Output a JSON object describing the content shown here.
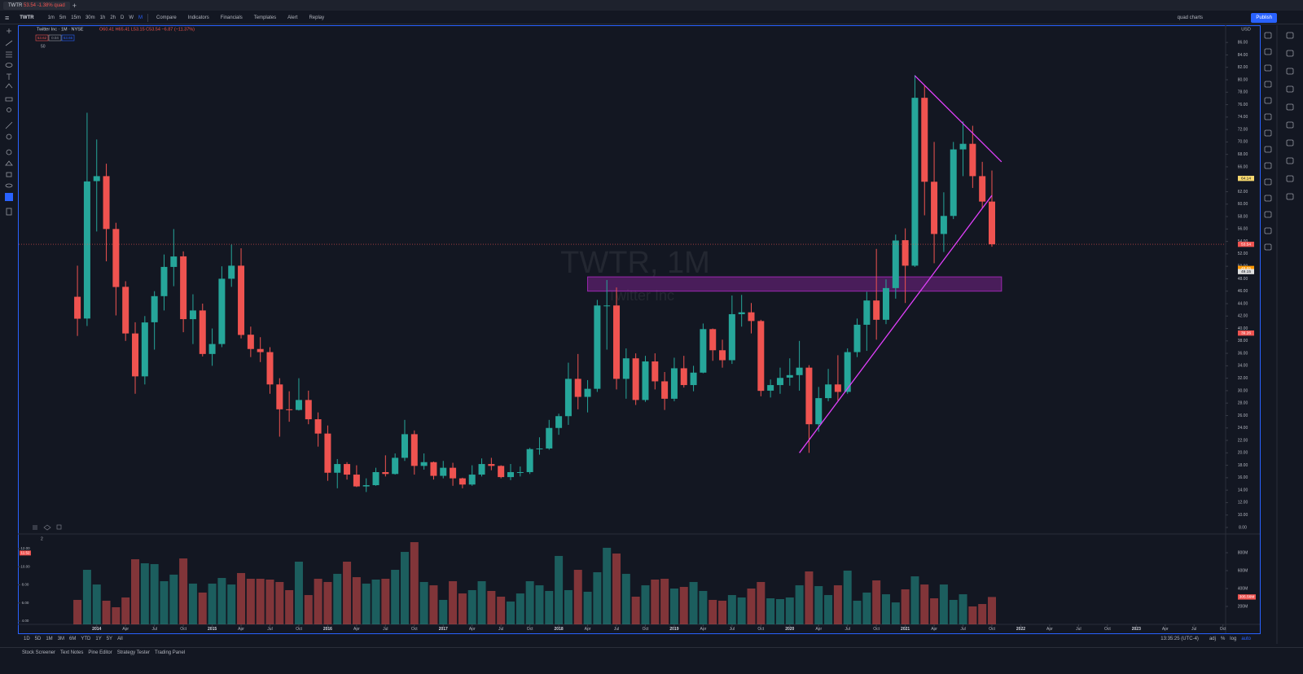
{
  "tab": {
    "symbol": "TWTR",
    "price": "53.54",
    "change": "-1.38% quad"
  },
  "toolbar": {
    "symbol": "TWTR",
    "intervals": [
      "1m",
      "5m",
      "15m",
      "30m",
      "1h",
      "2h",
      "D",
      "W",
      "M"
    ],
    "buttons": [
      "Compare",
      "Indicators",
      "Financials",
      "Templates",
      "Alert",
      "Replay"
    ],
    "layout": "quad charts",
    "publish": "Publish"
  },
  "chart_data": {
    "type": "candlestick",
    "legend_title": "Twitter Inc · 1M · NYSE",
    "legend_ohlc": "O60.41 H65.41 L53.15 C53.54 −6.87 (−11.37%)",
    "quote_boxes": [
      "53.62",
      "0.04",
      "53.66"
    ],
    "indicator_label": "50",
    "currency": "USD",
    "watermark_symbol": "TWTR, 1M",
    "watermark_name": "Twitter Inc",
    "x": [
      "2013-11",
      "2013-12",
      "2014-01",
      "2014-02",
      "2014-03",
      "2014-04",
      "2014-05",
      "2014-06",
      "2014-07",
      "2014-08",
      "2014-09",
      "2014-10",
      "2014-11",
      "2014-12",
      "2015-01",
      "2015-02",
      "2015-03",
      "2015-04",
      "2015-05",
      "2015-06",
      "2015-07",
      "2015-08",
      "2015-09",
      "2015-10",
      "2015-11",
      "2015-12",
      "2016-01",
      "2016-02",
      "2016-03",
      "2016-04",
      "2016-05",
      "2016-06",
      "2016-07",
      "2016-08",
      "2016-09",
      "2016-10",
      "2016-11",
      "2016-12",
      "2017-01",
      "2017-02",
      "2017-03",
      "2017-04",
      "2017-05",
      "2017-06",
      "2017-07",
      "2017-08",
      "2017-09",
      "2017-10",
      "2017-11",
      "2017-12",
      "2018-01",
      "2018-02",
      "2018-03",
      "2018-04",
      "2018-05",
      "2018-06",
      "2018-07",
      "2018-08",
      "2018-09",
      "2018-10",
      "2018-11",
      "2018-12",
      "2019-01",
      "2019-02",
      "2019-03",
      "2019-04",
      "2019-05",
      "2019-06",
      "2019-07",
      "2019-08",
      "2019-09",
      "2019-10",
      "2019-11",
      "2019-12",
      "2020-01",
      "2020-02",
      "2020-03",
      "2020-04",
      "2020-05",
      "2020-06",
      "2020-07",
      "2020-08",
      "2020-09",
      "2020-10",
      "2020-11",
      "2020-12",
      "2021-01",
      "2021-02",
      "2021-03",
      "2021-04",
      "2021-05",
      "2021-06",
      "2021-07",
      "2021-08",
      "2021-09",
      "2021-10"
    ],
    "open": [
      45.1,
      41.6,
      63.7,
      64.5,
      56.0,
      46.7,
      39.2,
      32.3,
      41.0,
      45.2,
      49.9,
      51.6,
      41.5,
      42.9,
      35.9,
      37.5,
      48.0,
      50.1,
      39.0,
      36.7,
      36.2,
      31.0,
      27.0,
      26.9,
      28.5,
      25.4,
      23.1,
      16.8,
      18.2,
      16.5,
      14.6,
      14.8,
      16.9,
      16.6,
      19.2,
      23.0,
      17.9,
      18.5,
      16.3,
      17.6,
      15.9,
      14.9,
      16.5,
      18.2,
      17.9,
      16.1,
      16.9,
      16.9,
      20.6,
      20.7,
      24.0,
      25.9,
      31.9,
      29.0,
      30.3,
      43.7,
      43.7,
      31.9,
      35.2,
      28.5,
      34.7,
      31.5,
      28.7,
      33.6,
      30.9,
      32.9,
      39.9,
      36.5,
      34.9,
      42.3,
      42.6,
      41.2,
      30.0,
      30.9,
      32.1,
      32.5,
      33.7,
      24.6,
      28.8,
      31.0,
      29.8,
      36.2,
      40.6,
      44.5,
      41.4,
      46.5,
      54.2,
      50.1,
      77.1,
      63.6,
      55.2,
      58.1,
      68.8,
      69.7,
      64.5,
      60.41
    ],
    "high": [
      50.1,
      74.7,
      70.4,
      66.5,
      57.0,
      47.6,
      41.0,
      42.0,
      46.0,
      51.9,
      55.99,
      52.4,
      45.5,
      44.0,
      40.0,
      50.0,
      53.5,
      52.9,
      40.3,
      38.6,
      37.0,
      32.0,
      29.9,
      32.0,
      30.0,
      26.5,
      24.4,
      19.0,
      18.5,
      18.0,
      15.9,
      17.6,
      19.6,
      19.9,
      25.3,
      23.6,
      19.9,
      18.6,
      18.7,
      18.4,
      16.0,
      18.0,
      19.1,
      19.2,
      18.0,
      18.2,
      17.8,
      20.8,
      22.5,
      25.3,
      26.3,
      34.5,
      35.9,
      31.7,
      44.6,
      47.8,
      46.6,
      36.8,
      36.0,
      35.6,
      36.0,
      33.0,
      35.3,
      35.6,
      34.0,
      40.8,
      40.0,
      38.2,
      45.3,
      45.4,
      44.1,
      41.4,
      31.8,
      33.7,
      35.2,
      38.0,
      34.1,
      30.6,
      33.5,
      35.7,
      36.8,
      41.6,
      45.9,
      52.8,
      47.9,
      55.1,
      56.1,
      80.75,
      79.0,
      70.0,
      61.9,
      70.0,
      73.3,
      72.6,
      66.8,
      65.41
    ],
    "low": [
      38.8,
      40.4,
      55.6,
      50.8,
      42.1,
      38.0,
      29.5,
      31.0,
      36.6,
      42.9,
      46.8,
      39.4,
      37.5,
      35.5,
      34.0,
      37.0,
      46.7,
      38.4,
      35.4,
      34.6,
      29.5,
      22.6,
      25.0,
      26.8,
      24.6,
      21.0,
      15.5,
      14.3,
      15.7,
      14.5,
      13.7,
      14.7,
      16.2,
      16.5,
      18.7,
      16.5,
      17.3,
      15.7,
      15.9,
      14.7,
      14.3,
      14.7,
      16.2,
      17.2,
      15.9,
      15.6,
      16.2,
      16.6,
      19.7,
      20.5,
      22.9,
      24.5,
      27.0,
      26.5,
      29.8,
      36.6,
      30.2,
      28.7,
      27.7,
      28.2,
      30.2,
      26.9,
      28.3,
      30.5,
      29.9,
      32.8,
      34.8,
      33.7,
      34.3,
      40.3,
      39.2,
      29.1,
      28.9,
      29.5,
      30.8,
      30.0,
      20.0,
      23.4,
      28.3,
      28.4,
      29.5,
      35.4,
      36.4,
      38.2,
      40.7,
      44.8,
      44.1,
      49.9,
      58.2,
      50.5,
      52.3,
      57.6,
      64.5,
      62.6,
      59.4,
      53.15
    ],
    "close": [
      41.57,
      63.65,
      64.5,
      56.0,
      46.67,
      39.2,
      32.3,
      40.97,
      45.2,
      49.9,
      51.58,
      41.5,
      42.9,
      35.9,
      37.5,
      48.0,
      50.1,
      38.96,
      36.7,
      36.2,
      31.0,
      27.0,
      26.9,
      28.5,
      25.4,
      23.1,
      16.8,
      18.2,
      16.5,
      14.6,
      14.8,
      16.9,
      16.6,
      19.2,
      23.0,
      17.9,
      18.5,
      16.3,
      17.6,
      15.9,
      14.9,
      16.5,
      18.2,
      17.9,
      16.1,
      16.9,
      16.9,
      20.6,
      20.7,
      24.0,
      25.9,
      31.9,
      29.0,
      30.3,
      43.7,
      43.7,
      31.9,
      35.2,
      28.5,
      34.7,
      31.5,
      28.7,
      33.6,
      30.9,
      32.9,
      39.9,
      36.5,
      34.9,
      42.3,
      42.6,
      41.2,
      29.97,
      30.9,
      32.05,
      32.5,
      33.7,
      24.6,
      28.8,
      31.0,
      29.8,
      36.2,
      40.6,
      44.5,
      41.4,
      46.5,
      54.15,
      50.1,
      77.1,
      63.6,
      55.2,
      58.1,
      68.8,
      69.7,
      64.5,
      60.41,
      53.54
    ],
    "up_color": "#26a69a",
    "down_color": "#ef5350",
    "xlim": [
      "2013-06",
      "2023-11"
    ],
    "ylim": [
      7.08,
      88.77
    ],
    "yticks": [
      {
        "value": 8,
        "label": "8.00"
      },
      {
        "value": 10,
        "label": "10.00"
      },
      {
        "value": 12,
        "label": "12.00"
      },
      {
        "value": 14,
        "label": "14.00"
      },
      {
        "value": 16,
        "label": "16.00"
      },
      {
        "value": 18,
        "label": "18.00"
      },
      {
        "value": 20,
        "label": "20.00"
      },
      {
        "value": 22,
        "label": "22.00"
      },
      {
        "value": 24,
        "label": "24.00"
      },
      {
        "value": 26,
        "label": "26.00"
      },
      {
        "value": 28,
        "label": "28.00"
      },
      {
        "value": 30,
        "label": "30.00"
      },
      {
        "value": 32,
        "label": "32.00"
      },
      {
        "value": 34,
        "label": "34.00"
      },
      {
        "value": 36,
        "label": "36.00"
      },
      {
        "value": 38,
        "label": "38.00"
      },
      {
        "value": 40,
        "label": "40.00"
      },
      {
        "value": 42,
        "label": "42.00"
      },
      {
        "value": 44,
        "label": "44.00"
      },
      {
        "value": 46,
        "label": "46.00"
      },
      {
        "value": 48,
        "label": "48.00"
      },
      {
        "value": 50,
        "label": "50.00"
      },
      {
        "value": 52,
        "label": "52.00"
      },
      {
        "value": 54,
        "label": "54.00"
      },
      {
        "value": 56,
        "label": "56.00"
      },
      {
        "value": 58,
        "label": "58.00"
      },
      {
        "value": 60,
        "label": "60.00"
      },
      {
        "value": 62,
        "label": "62.00"
      },
      {
        "value": 64,
        "label": "64.00"
      },
      {
        "value": 66,
        "label": "66.00"
      },
      {
        "value": 68,
        "label": "68.00"
      },
      {
        "value": 70,
        "label": "70.00"
      },
      {
        "value": 72,
        "label": "72.00"
      },
      {
        "value": 74,
        "label": "74.00"
      },
      {
        "value": 76,
        "label": "76.00"
      },
      {
        "value": 78,
        "label": "78.00"
      },
      {
        "value": 80,
        "label": "80.00"
      },
      {
        "value": 82,
        "label": "82.00"
      },
      {
        "value": 84,
        "label": "84.00"
      },
      {
        "value": 86,
        "label": "86.00"
      }
    ],
    "xticks": [
      {
        "value": "2014-01",
        "label": "2014"
      },
      {
        "value": "2014-04",
        "label": "Apr"
      },
      {
        "value": "2014-07",
        "label": "Jul"
      },
      {
        "value": "2014-10",
        "label": "Oct"
      },
      {
        "value": "2015-01",
        "label": "2015"
      },
      {
        "value": "2015-04",
        "label": "Apr"
      },
      {
        "value": "2015-07",
        "label": "Jul"
      },
      {
        "value": "2015-10",
        "label": "Oct"
      },
      {
        "value": "2016-01",
        "label": "2016"
      },
      {
        "value": "2016-04",
        "label": "Apr"
      },
      {
        "value": "2016-07",
        "label": "Jul"
      },
      {
        "value": "2016-10",
        "label": "Oct"
      },
      {
        "value": "2017-01",
        "label": "2017"
      },
      {
        "value": "2017-04",
        "label": "Apr"
      },
      {
        "value": "2017-07",
        "label": "Jul"
      },
      {
        "value": "2017-10",
        "label": "Oct"
      },
      {
        "value": "2018-01",
        "label": "2018"
      },
      {
        "value": "2018-04",
        "label": "Apr"
      },
      {
        "value": "2018-07",
        "label": "Jul"
      },
      {
        "value": "2018-10",
        "label": "Oct"
      },
      {
        "value": "2019-01",
        "label": "2019"
      },
      {
        "value": "2019-04",
        "label": "Apr"
      },
      {
        "value": "2019-07",
        "label": "Jul"
      },
      {
        "value": "2019-10",
        "label": "Oct"
      },
      {
        "value": "2020-01",
        "label": "2020"
      },
      {
        "value": "2020-04",
        "label": "Apr"
      },
      {
        "value": "2020-07",
        "label": "Jul"
      },
      {
        "value": "2020-10",
        "label": "Oct"
      },
      {
        "value": "2021-01",
        "label": "2021"
      },
      {
        "value": "2021-04",
        "label": "Apr"
      },
      {
        "value": "2021-07",
        "label": "Jul"
      },
      {
        "value": "2021-10",
        "label": "Oct"
      },
      {
        "value": "2022-01",
        "label": "2022"
      },
      {
        "value": "2022-04",
        "label": "Apr"
      },
      {
        "value": "2022-07",
        "label": "Jul"
      },
      {
        "value": "2022-10",
        "label": "Oct"
      },
      {
        "value": "2023-01",
        "label": "2023"
      },
      {
        "value": "2023-04",
        "label": "Apr"
      },
      {
        "value": "2023-07",
        "label": "Jul"
      },
      {
        "value": "2023-10",
        "label": "Oct"
      }
    ],
    "price_tags": [
      {
        "value": 64.14,
        "color": "#f5d76e"
      },
      {
        "value": 53.54,
        "color": "#ef5350"
      },
      {
        "value": 49.65,
        "color": "#ff9800"
      },
      {
        "value": 49.15,
        "color": "#e0e0e0"
      },
      {
        "value": 39.26,
        "color": "#ef5350"
      }
    ],
    "drawings": [
      {
        "type": "trendline",
        "color": "#e040fb",
        "points": [
          [
            "2021-02",
            80.65
          ],
          [
            "2021-11",
            66.8
          ]
        ]
      },
      {
        "type": "trendline",
        "color": "#e040fb",
        "points": [
          [
            "2020-02",
            20.0
          ],
          [
            "2021-10",
            61.4
          ]
        ]
      },
      {
        "type": "rectangle",
        "color": "#9c27b0",
        "points": [
          [
            "2018-04",
            48.3
          ],
          [
            "2021-11",
            46.0
          ]
        ]
      }
    ],
    "volume": {
      "pane_number": "2",
      "values": [
        273,
        609,
        445,
        264,
        191,
        300,
        727,
        682,
        673,
        482,
        555,
        736,
        455,
        355,
        455,
        518,
        445,
        573,
        509,
        509,
        500,
        473,
        382,
        700,
        327,
        509,
        473,
        564,
        700,
        527,
        455,
        500,
        509,
        609,
        809,
        918,
        473,
        436,
        273,
        482,
        345,
        382,
        482,
        373,
        309,
        255,
        345,
        482,
        436,
        373,
        764,
        382,
        609,
        364,
        582,
        855,
        791,
        564,
        309,
        436,
        500,
        509,
        400,
        418,
        473,
        373,
        273,
        264,
        327,
        300,
        400,
        473,
        291,
        282,
        300,
        436,
        591,
        427,
        327,
        436,
        600,
        264,
        355,
        491,
        336,
        245,
        391,
        536,
        445,
        291,
        445,
        273,
        336,
        200,
        227,
        305.56
      ],
      "ylim": [
        0,
        1000
      ],
      "yticks": [
        {
          "value": 200,
          "label": "200M"
        },
        {
          "value": 400,
          "label": "400M"
        },
        {
          "value": 600,
          "label": "600M"
        },
        {
          "value": 800,
          "label": "800M"
        }
      ],
      "last_label": "305.56M",
      "osc_ylim": [
        3.64,
        13.53
      ],
      "osc_ticks": [
        {
          "value": 4,
          "label": "4.00"
        },
        {
          "value": 6,
          "label": "6.00"
        },
        {
          "value": 8,
          "label": "8.00"
        },
        {
          "value": 10,
          "label": "10.00"
        },
        {
          "value": 12,
          "label": "12.00"
        }
      ],
      "osc_tag": {
        "value": 11.52,
        "label": "11.52"
      }
    }
  },
  "range_bar": {
    "ranges": [
      "1D",
      "5D",
      "1M",
      "3M",
      "6M",
      "YTD",
      "1Y",
      "5Y",
      "All"
    ],
    "time": "13:35:25 (UTC-4)",
    "options": [
      "adj",
      "%",
      "log",
      "auto"
    ]
  },
  "bottom_tabs": [
    "Stock Screener",
    "Text Notes",
    "Pine Editor",
    "Strategy Tester",
    "Trading Panel"
  ]
}
